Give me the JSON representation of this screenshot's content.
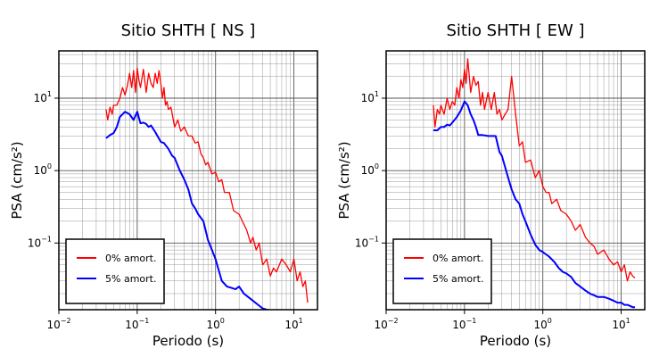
{
  "chart_data": [
    {
      "type": "line",
      "title": "Sitio SHTH [ NS ]",
      "xlabel": "Periodo (s)",
      "ylabel": "PSA (cm/s²)",
      "xscale": "log",
      "yscale": "log",
      "xlim": [
        0.01,
        20
      ],
      "ylim": [
        0.012,
        45
      ],
      "x_ticks": [
        {
          "base": "10",
          "exp": "−2"
        },
        {
          "base": "10",
          "exp": "−1"
        },
        {
          "base": "10",
          "exp": "0"
        },
        {
          "base": "10",
          "exp": "1"
        }
      ],
      "y_ticks": [
        {
          "base": "10",
          "exp": "−1"
        },
        {
          "base": "10",
          "exp": "0"
        },
        {
          "base": "10",
          "exp": "1"
        }
      ],
      "grid": true,
      "legend_position": "bottom-left",
      "series": [
        {
          "name": "0% amort.",
          "color": "#ff0000",
          "x": [
            0.04,
            0.042,
            0.045,
            0.048,
            0.05,
            0.055,
            0.06,
            0.065,
            0.07,
            0.075,
            0.08,
            0.085,
            0.09,
            0.095,
            0.1,
            0.105,
            0.11,
            0.12,
            0.13,
            0.14,
            0.15,
            0.16,
            0.17,
            0.18,
            0.19,
            0.2,
            0.21,
            0.22,
            0.23,
            0.24,
            0.25,
            0.27,
            0.3,
            0.33,
            0.36,
            0.4,
            0.45,
            0.5,
            0.55,
            0.6,
            0.65,
            0.7,
            0.75,
            0.8,
            0.9,
            1.0,
            1.1,
            1.2,
            1.3,
            1.5,
            1.7,
            2.0,
            2.2,
            2.5,
            2.8,
            3.0,
            3.3,
            3.6,
            4.0,
            4.5,
            5.0,
            5.5,
            6.0,
            7.0,
            8.0,
            9.0,
            10.0,
            11.0,
            12.0,
            13.0,
            14.0,
            15.0
          ],
          "values": [
            7,
            5,
            7.5,
            6,
            8,
            8,
            10,
            14,
            11,
            15,
            22,
            14,
            24,
            12,
            26,
            18,
            14,
            25,
            12,
            22,
            16,
            14,
            22,
            16,
            24,
            16,
            10,
            14,
            8,
            9,
            7,
            7.5,
            4,
            5,
            3.5,
            4,
            3,
            3,
            2.4,
            2.5,
            1.7,
            1.5,
            1.2,
            1.3,
            0.9,
            0.95,
            0.7,
            0.75,
            0.5,
            0.5,
            0.28,
            0.25,
            0.2,
            0.15,
            0.1,
            0.12,
            0.08,
            0.1,
            0.05,
            0.06,
            0.035,
            0.045,
            0.04,
            0.06,
            0.05,
            0.04,
            0.06,
            0.03,
            0.04,
            0.025,
            0.03,
            0.015
          ]
        },
        {
          "name": "5% amort.",
          "color": "#0000ff",
          "x": [
            0.04,
            0.045,
            0.05,
            0.055,
            0.06,
            0.07,
            0.08,
            0.09,
            0.1,
            0.11,
            0.12,
            0.13,
            0.14,
            0.15,
            0.17,
            0.2,
            0.22,
            0.25,
            0.28,
            0.3,
            0.35,
            0.4,
            0.45,
            0.5,
            0.55,
            0.6,
            0.7,
            0.8,
            0.9,
            1.0,
            1.2,
            1.4,
            1.6,
            1.8,
            2.0,
            2.3,
            2.6,
            3.0,
            3.5,
            4.0,
            4.5,
            5.0,
            6.0,
            7.0,
            8.0,
            9.0,
            10.0,
            11.0,
            12.0,
            13.0,
            14.0,
            15.0
          ],
          "values": [
            2.8,
            3.1,
            3.3,
            4,
            5.5,
            6.5,
            6,
            5,
            6.5,
            4.5,
            4.6,
            4.4,
            4,
            4.2,
            3.4,
            2.5,
            2.4,
            2,
            1.6,
            1.5,
            1.0,
            0.75,
            0.55,
            0.35,
            0.3,
            0.25,
            0.2,
            0.11,
            0.08,
            0.06,
            0.03,
            0.025,
            0.024,
            0.023,
            0.025,
            0.02,
            0.018,
            0.016,
            0.014,
            0.0125,
            0.012,
            0.0118,
            0.011,
            0.0113,
            0.0115,
            0.0112,
            0.011,
            0.0115,
            0.01,
            0.0095,
            0.009,
            0.0088
          ]
        }
      ]
    },
    {
      "type": "line",
      "title": "Sitio SHTH [ EW ]",
      "xlabel": "Periodo (s)",
      "ylabel": "PSA (cm/s²)",
      "xscale": "log",
      "yscale": "log",
      "xlim": [
        0.01,
        20
      ],
      "ylim": [
        0.012,
        45
      ],
      "x_ticks": [
        {
          "base": "10",
          "exp": "−2"
        },
        {
          "base": "10",
          "exp": "−1"
        },
        {
          "base": "10",
          "exp": "0"
        },
        {
          "base": "10",
          "exp": "1"
        }
      ],
      "y_ticks": [
        {
          "base": "10",
          "exp": "−1"
        },
        {
          "base": "10",
          "exp": "0"
        },
        {
          "base": "10",
          "exp": "1"
        }
      ],
      "grid": true,
      "legend_position": "bottom-left",
      "series": [
        {
          "name": "0% amort.",
          "color": "#ff0000",
          "x": [
            0.04,
            0.042,
            0.045,
            0.048,
            0.05,
            0.055,
            0.06,
            0.065,
            0.07,
            0.075,
            0.08,
            0.085,
            0.09,
            0.095,
            0.1,
            0.105,
            0.11,
            0.12,
            0.13,
            0.14,
            0.15,
            0.16,
            0.17,
            0.18,
            0.2,
            0.22,
            0.24,
            0.26,
            0.28,
            0.3,
            0.33,
            0.36,
            0.4,
            0.45,
            0.5,
            0.55,
            0.6,
            0.7,
            0.8,
            0.9,
            1.0,
            1.1,
            1.2,
            1.3,
            1.5,
            1.7,
            2.0,
            2.3,
            2.6,
            3.0,
            3.5,
            4.0,
            4.5,
            5.0,
            6.0,
            7.0,
            8.0,
            9.0,
            10.0,
            11.0,
            12.0,
            13.0,
            14.0,
            15.0
          ],
          "values": [
            8,
            4,
            7,
            6,
            8,
            6,
            10,
            7,
            9,
            8,
            14,
            10,
            18,
            14,
            25,
            16,
            35,
            12,
            20,
            15,
            17,
            8,
            12,
            7,
            12,
            7,
            12,
            6,
            7,
            5,
            6,
            7,
            20,
            6,
            2.2,
            2.5,
            1.3,
            1.4,
            0.8,
            1.0,
            0.6,
            0.5,
            0.5,
            0.35,
            0.4,
            0.28,
            0.25,
            0.2,
            0.15,
            0.18,
            0.12,
            0.1,
            0.09,
            0.07,
            0.08,
            0.06,
            0.05,
            0.055,
            0.04,
            0.05,
            0.03,
            0.04,
            0.035,
            0.033
          ]
        },
        {
          "name": "5% amort.",
          "color": "#0000ff",
          "x": [
            0.04,
            0.045,
            0.05,
            0.055,
            0.06,
            0.065,
            0.07,
            0.08,
            0.09,
            0.1,
            0.11,
            0.12,
            0.13,
            0.14,
            0.15,
            0.17,
            0.2,
            0.22,
            0.25,
            0.28,
            0.3,
            0.35,
            0.4,
            0.45,
            0.5,
            0.55,
            0.6,
            0.7,
            0.8,
            0.9,
            1.0,
            1.2,
            1.4,
            1.6,
            1.8,
            2.0,
            2.3,
            2.6,
            3.0,
            3.5,
            4.0,
            4.5,
            5.0,
            6.0,
            7.0,
            8.0,
            9.0,
            10.0,
            11.0,
            12.0,
            13.0,
            14.0,
            15.0
          ],
          "values": [
            3.6,
            3.6,
            4,
            4,
            4.3,
            4.2,
            4.6,
            5.5,
            6.8,
            9,
            8,
            6,
            5,
            4,
            3.1,
            3.1,
            3,
            3,
            3,
            1.8,
            1.6,
            0.9,
            0.55,
            0.4,
            0.35,
            0.25,
            0.2,
            0.13,
            0.095,
            0.08,
            0.075,
            0.065,
            0.055,
            0.045,
            0.04,
            0.038,
            0.034,
            0.028,
            0.025,
            0.022,
            0.02,
            0.019,
            0.018,
            0.018,
            0.017,
            0.016,
            0.015,
            0.015,
            0.014,
            0.014,
            0.0135,
            0.013,
            0.013
          ]
        }
      ]
    }
  ]
}
